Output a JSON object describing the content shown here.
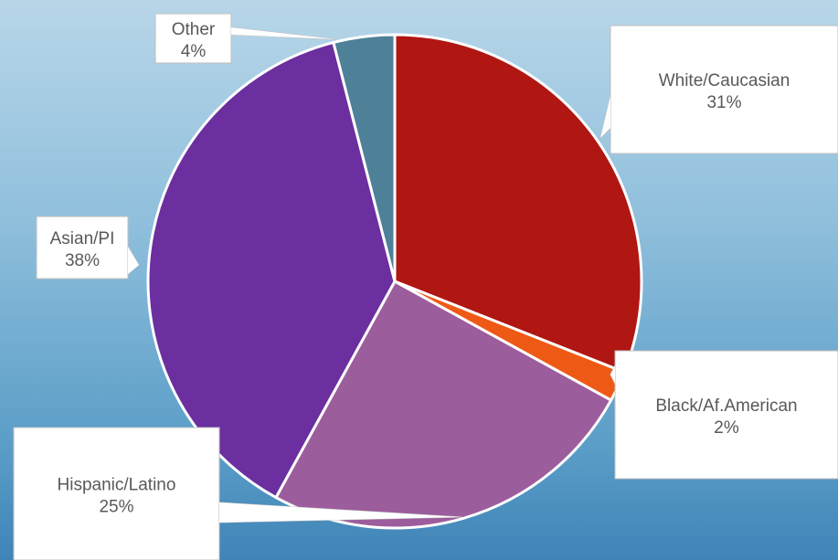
{
  "chart_data": {
    "type": "pie",
    "title": "",
    "start_angle_deg": 0,
    "direction": "clockwise",
    "slices": [
      {
        "label": "White/Caucasian",
        "value": 31,
        "display": "31%",
        "color": "#b01612"
      },
      {
        "label": "Black/Af.American",
        "value": 2,
        "display": "2%",
        "color": "#ee5a16"
      },
      {
        "label": "Hispanic/Latino",
        "value": 25,
        "display": "25%",
        "color": "#9c5d9c"
      },
      {
        "label": "Asian/PI",
        "value": 38,
        "display": "38%",
        "color": "#6b2fa0"
      },
      {
        "label": "Other",
        "value": 4,
        "display": "4%",
        "color": "#4e8098"
      }
    ],
    "slice_border_color": "#ffffff",
    "label_style": "callouts"
  }
}
